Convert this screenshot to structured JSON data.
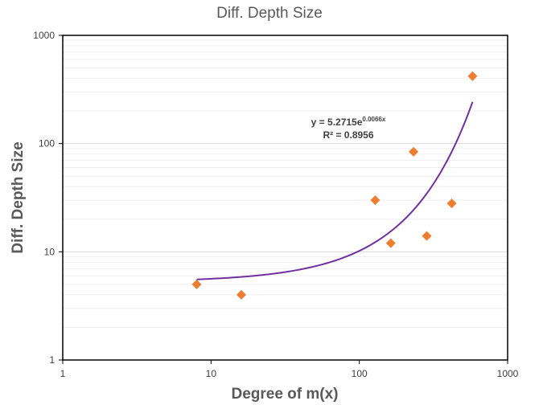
{
  "chart_data": {
    "type": "scatter",
    "title": "Diff. Depth Size",
    "xlabel": "Degree of m(x)",
    "ylabel": "Diff. Depth Size",
    "x_scale": "log",
    "y_scale": "log",
    "xlim": [
      1,
      1000
    ],
    "ylim": [
      1,
      1000
    ],
    "x_ticks": [
      "1",
      "10",
      "100",
      "1000"
    ],
    "y_ticks": [
      "1",
      "10",
      "100",
      "1000"
    ],
    "grid": "horizontal major and minor",
    "colors": {
      "points": "#ED7D31",
      "trendline": "#7030A0",
      "major_grid": "#d9d9d9",
      "minor_grid": "#efefef"
    },
    "series": [
      {
        "marker": "diamond",
        "points": [
          {
            "x": 8,
            "y": 5
          },
          {
            "x": 16,
            "y": 4
          },
          {
            "x": 128,
            "y": 30
          },
          {
            "x": 163,
            "y": 12
          },
          {
            "x": 232,
            "y": 84
          },
          {
            "x": 285,
            "y": 14
          },
          {
            "x": 420,
            "y": 28
          },
          {
            "x": 580,
            "y": 420
          }
        ]
      }
    ],
    "trendline": {
      "type": "exponential",
      "a": 5.2715,
      "b": 0.0066,
      "x_range": [
        8,
        580
      ],
      "equation_main": "y = 5.2715e",
      "equation_exp": "0.0066x",
      "r_squared": "R² = 0.8956"
    }
  }
}
